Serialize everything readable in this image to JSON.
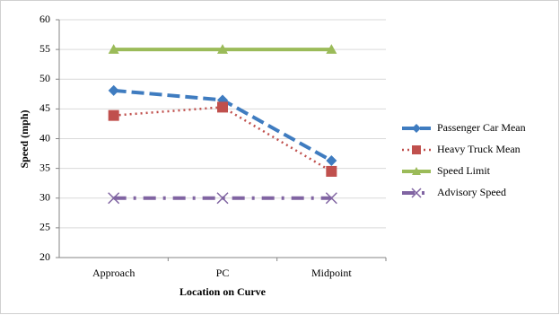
{
  "chart_data": {
    "type": "line",
    "categories": [
      "Approach",
      "PC",
      "Midpoint"
    ],
    "x_label": "Location on Curve",
    "y_label": "Speed (mph)",
    "ylim": [
      20,
      60
    ],
    "yticks": [
      20,
      25,
      30,
      35,
      40,
      45,
      50,
      55,
      60
    ],
    "grid": true,
    "legend": "right",
    "series": [
      {
        "name": "Passenger Car Mean",
        "color": "#3f7cc0",
        "line_style": "dashed",
        "marker": "diamond",
        "values": [
          48.1,
          46.5,
          36.3
        ]
      },
      {
        "name": "Heavy Truck Mean",
        "color": "#c0504d",
        "line_style": "dotted",
        "marker": "square",
        "values": [
          43.9,
          45.3,
          34.5
        ]
      },
      {
        "name": "Speed Limit",
        "color": "#9bbb59",
        "line_style": "solid",
        "marker": "triangle",
        "values": [
          55,
          55,
          55
        ]
      },
      {
        "name": "Advisory Speed",
        "color": "#8064a2",
        "line_style": "dashdot",
        "marker": "x",
        "values": [
          30,
          30,
          30
        ]
      }
    ]
  }
}
